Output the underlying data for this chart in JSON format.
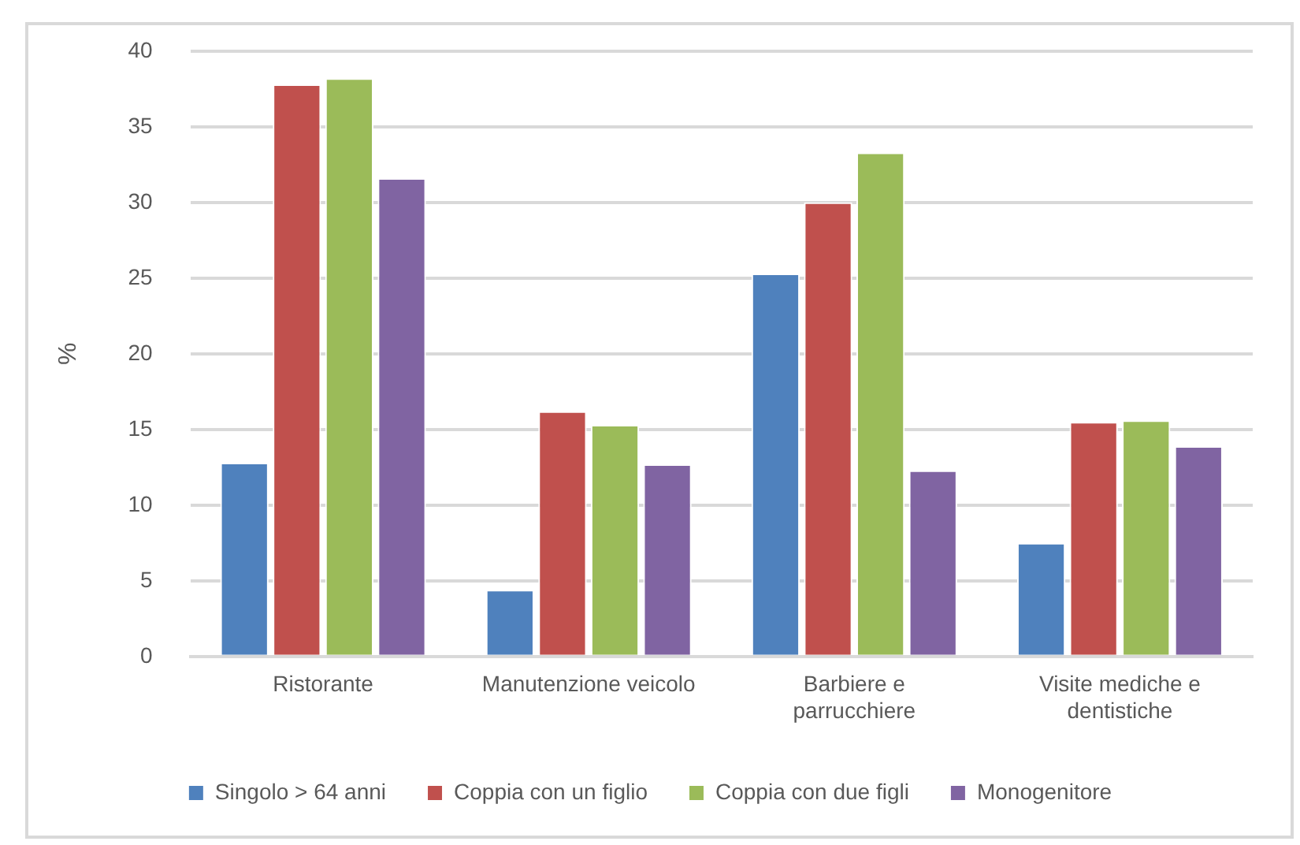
{
  "chart_data": {
    "type": "bar",
    "ylabel": "%",
    "categories": [
      "Ristorante",
      "Manutenzione veicolo",
      "Barbiere e parrucchiere",
      "Visite mediche e dentistiche"
    ],
    "series": [
      {
        "name": "Singolo > 64 anni",
        "color": "#4f81bd",
        "values": [
          12.8,
          4.4,
          25.3,
          7.5
        ]
      },
      {
        "name": "Coppia con un figlio",
        "color": "#c0504d",
        "values": [
          37.8,
          16.2,
          30.0,
          15.5
        ]
      },
      {
        "name": "Coppia con due figli",
        "color": "#9bbb59",
        "values": [
          38.2,
          15.3,
          33.3,
          15.6
        ]
      },
      {
        "name": "Monogenitore",
        "color": "#8064a2",
        "values": [
          31.6,
          12.7,
          12.3,
          13.9
        ]
      }
    ],
    "ylim": [
      0,
      40
    ],
    "yticks": [
      0,
      5,
      10,
      15,
      20,
      25,
      30,
      35,
      40
    ],
    "grid": "y",
    "legend": "bottom"
  }
}
